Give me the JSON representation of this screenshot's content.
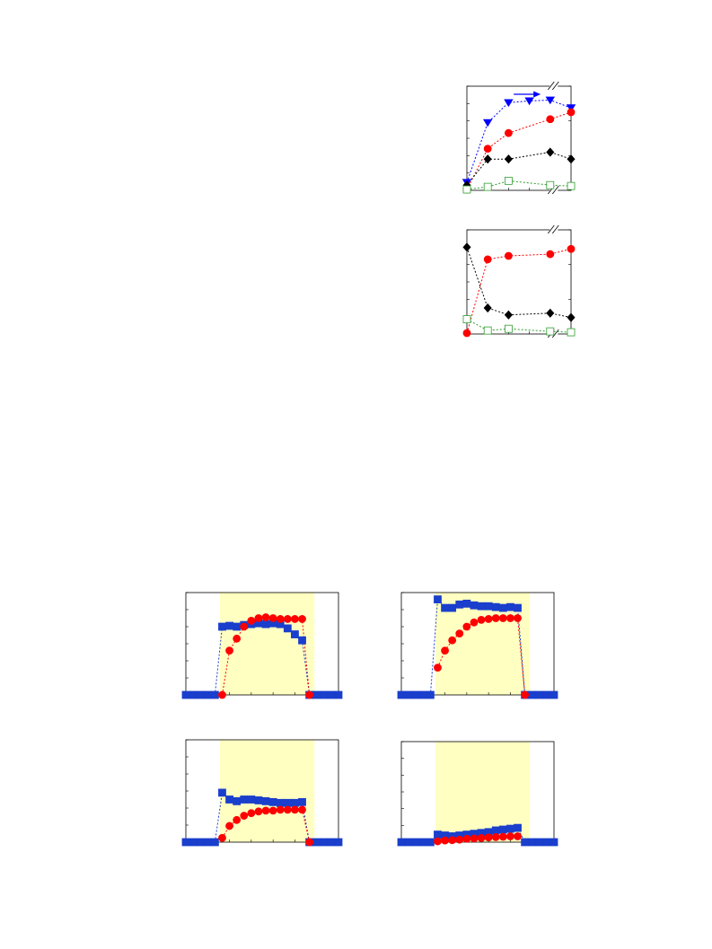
{
  "colors": {
    "red": "#ff0000",
    "blue": "#0000ff",
    "blue_square": "#1a3fcc",
    "black": "#000000",
    "green": "#2e9e2e",
    "highlight": "#ffffc2"
  },
  "chart_data": [
    {
      "type": "line",
      "x": [
        0,
        1,
        2,
        3,
        4,
        5
      ],
      "ylim": [
        0,
        6
      ],
      "arrow": "right",
      "axis_break": true,
      "series": [
        {
          "marker": "triangle-down",
          "color": "blue",
          "fill": true,
          "values": [
            0.45,
            3.9,
            5.05,
            5.15,
            5.2,
            4.75
          ]
        },
        {
          "marker": "circle",
          "color": "red",
          "fill": true,
          "values": [
            0.05,
            2.4,
            3.3,
            null,
            4.1,
            4.5
          ]
        },
        {
          "marker": "diamond",
          "color": "black",
          "fill": true,
          "values": [
            0.3,
            1.8,
            1.8,
            null,
            2.2,
            1.8
          ]
        },
        {
          "marker": "square",
          "color": "green",
          "fill": false,
          "values": [
            0.05,
            0.2,
            0.55,
            null,
            0.3,
            0.25
          ]
        }
      ]
    },
    {
      "type": "line",
      "x": [
        0,
        1,
        2,
        3,
        4,
        5
      ],
      "ylim": [
        0,
        6
      ],
      "axis_break": true,
      "series": [
        {
          "marker": "diamond",
          "color": "black",
          "fill": true,
          "values": [
            5.0,
            1.5,
            1.1,
            null,
            1.2,
            0.95
          ]
        },
        {
          "marker": "circle",
          "color": "red",
          "fill": true,
          "values": [
            0.05,
            4.3,
            4.5,
            null,
            4.6,
            4.9
          ]
        },
        {
          "marker": "square",
          "color": "green",
          "fill": false,
          "values": [
            0.85,
            0.2,
            0.3,
            null,
            0.15,
            0.1
          ]
        }
      ]
    },
    {
      "type": "line",
      "x": [
        0,
        1,
        2,
        3,
        4,
        5,
        6,
        7,
        8,
        9,
        10,
        11,
        12,
        13,
        14,
        15,
        16,
        17,
        18,
        19,
        20,
        21
      ],
      "ylim": [
        0,
        6
      ],
      "shaded_x": [
        4.7,
        17.7
      ],
      "series": [
        {
          "marker": "square",
          "color": "blue_square",
          "fill": true,
          "values": [
            0,
            0,
            0,
            0,
            0,
            4.0,
            4.05,
            4.0,
            4.1,
            4.15,
            4.2,
            4.15,
            4.2,
            4.15,
            3.9,
            3.55,
            3.2,
            0,
            0,
            0,
            0,
            0
          ]
        },
        {
          "marker": "circle",
          "color": "red",
          "fill": true,
          "values": [
            null,
            null,
            null,
            null,
            null,
            0,
            2.6,
            3.3,
            4.0,
            4.35,
            4.5,
            4.55,
            4.5,
            4.45,
            4.45,
            4.45,
            4.45,
            0,
            null,
            null,
            null,
            null
          ]
        }
      ]
    },
    {
      "type": "line",
      "x": [
        0,
        1,
        2,
        3,
        4,
        5,
        6,
        7,
        8,
        9,
        10,
        11,
        12,
        13,
        14,
        15,
        16,
        17,
        18,
        19,
        20,
        21
      ],
      "ylim": [
        0,
        6
      ],
      "shaded_x": [
        4.7,
        17.7
      ],
      "series": [
        {
          "marker": "square",
          "color": "blue_square",
          "fill": true,
          "values": [
            0,
            0,
            0,
            0,
            0,
            5.6,
            5.1,
            5.1,
            5.3,
            5.35,
            5.25,
            5.2,
            5.2,
            5.15,
            5.1,
            5.15,
            5.1,
            0,
            0,
            0,
            0,
            0
          ]
        },
        {
          "marker": "circle",
          "color": "red",
          "fill": true,
          "values": [
            null,
            null,
            null,
            null,
            null,
            1.6,
            2.6,
            3.2,
            3.6,
            4.0,
            4.25,
            4.4,
            4.45,
            4.5,
            4.5,
            4.5,
            4.5,
            0,
            null,
            null,
            null,
            null
          ]
        }
      ]
    },
    {
      "type": "line",
      "x": [
        0,
        1,
        2,
        3,
        4,
        5,
        6,
        7,
        8,
        9,
        10,
        11,
        12,
        13,
        14,
        15,
        16,
        17,
        18,
        19,
        20,
        21
      ],
      "ylim": [
        0,
        6
      ],
      "shaded_x": [
        4.7,
        17.7
      ],
      "series": [
        {
          "marker": "square",
          "color": "blue_square",
          "fill": true,
          "values": [
            0,
            0,
            0,
            0,
            0,
            2.9,
            2.5,
            2.4,
            2.5,
            2.5,
            2.45,
            2.4,
            2.35,
            2.3,
            2.3,
            2.3,
            2.35,
            0,
            0,
            0,
            0,
            0
          ]
        },
        {
          "marker": "circle",
          "color": "red",
          "fill": true,
          "values": [
            null,
            null,
            null,
            null,
            null,
            0.25,
            0.95,
            1.3,
            1.55,
            1.7,
            1.8,
            1.85,
            1.85,
            1.9,
            1.9,
            1.9,
            1.9,
            0,
            null,
            null,
            null,
            null
          ]
        }
      ]
    },
    {
      "type": "line",
      "x": [
        0,
        1,
        2,
        3,
        4,
        5,
        6,
        7,
        8,
        9,
        10,
        11,
        12,
        13,
        14,
        15,
        16,
        17,
        18,
        19,
        20,
        21
      ],
      "ylim": [
        0,
        6
      ],
      "shaded_x": [
        4.7,
        17.7
      ],
      "series": [
        {
          "marker": "square",
          "color": "blue_square",
          "fill": true,
          "values": [
            0,
            0,
            0,
            0,
            0,
            0.45,
            0.4,
            0.35,
            0.4,
            0.45,
            0.5,
            0.55,
            0.6,
            0.7,
            0.75,
            0.8,
            0.85,
            0,
            0,
            0,
            0,
            0
          ]
        },
        {
          "marker": "circle",
          "color": "red",
          "fill": true,
          "values": [
            null,
            null,
            null,
            null,
            null,
            0.05,
            0.1,
            0.12,
            0.15,
            0.2,
            0.22,
            0.25,
            0.28,
            0.3,
            0.32,
            0.35,
            0.35,
            null,
            null,
            null,
            null,
            null
          ]
        }
      ]
    }
  ]
}
